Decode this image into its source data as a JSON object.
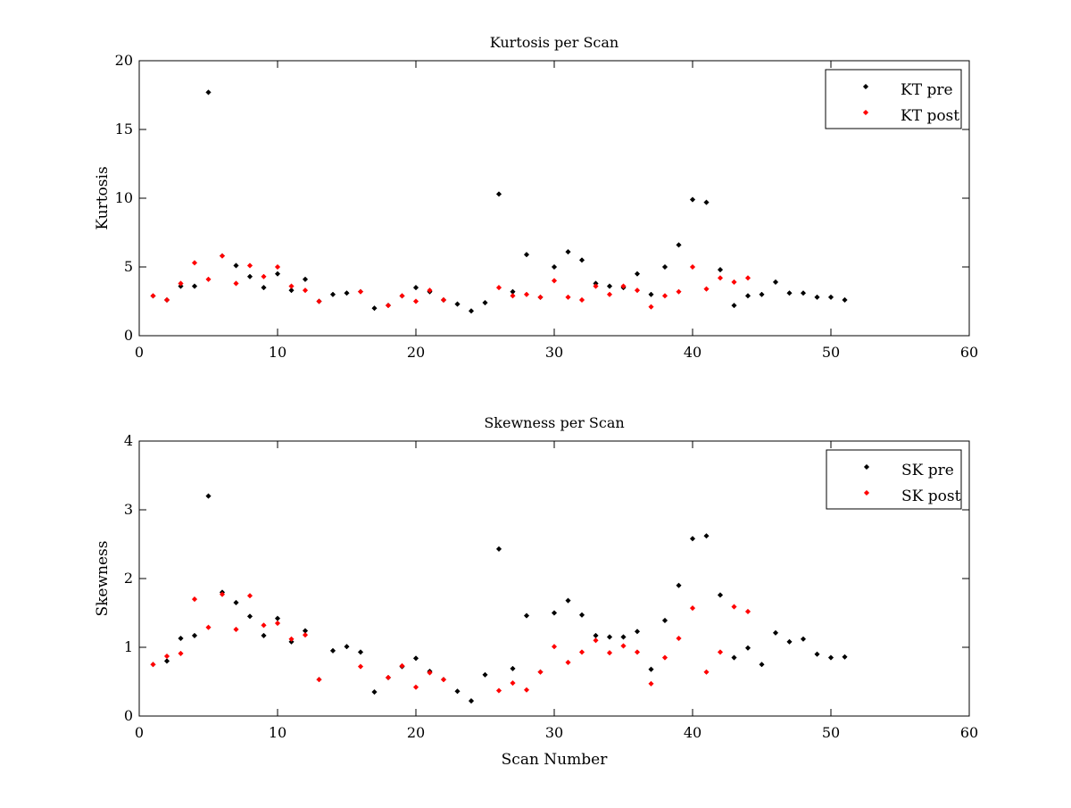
{
  "chart_data": [
    {
      "type": "scatter",
      "title": "Kurtosis per Scan",
      "xlabel": "",
      "ylabel": "Kurtosis",
      "xlim": [
        0,
        60
      ],
      "ylim": [
        0,
        20
      ],
      "xticks": [
        0,
        10,
        20,
        30,
        40,
        50,
        60
      ],
      "yticks": [
        0,
        5,
        10,
        15,
        20
      ],
      "grid": false,
      "legend_position": "top-right",
      "series": [
        {
          "name": "KT pre",
          "color": "#000000",
          "marker": "diamond-dot",
          "x": [
            1,
            2,
            3,
            4,
            5,
            6,
            7,
            8,
            9,
            10,
            11,
            12,
            13,
            14,
            15,
            16,
            17,
            18,
            19,
            20,
            21,
            22,
            23,
            24,
            25,
            26,
            27,
            28,
            29,
            30,
            31,
            32,
            33,
            34,
            35,
            36,
            37,
            38,
            39,
            40,
            41,
            42,
            43,
            44,
            45,
            46,
            47,
            48,
            49,
            50,
            51
          ],
          "y": [
            2.9,
            2.6,
            3.6,
            3.6,
            17.7,
            5.8,
            5.1,
            4.3,
            3.5,
            4.5,
            3.3,
            4.1,
            2.5,
            3.0,
            3.1,
            3.2,
            2.0,
            2.2,
            2.9,
            3.5,
            3.2,
            2.6,
            2.3,
            1.8,
            2.4,
            10.3,
            3.2,
            5.9,
            2.8,
            5.0,
            6.1,
            5.5,
            3.8,
            3.6,
            3.5,
            4.5,
            3.0,
            5.0,
            6.6,
            9.9,
            9.7,
            4.8,
            2.2,
            2.9,
            3.0,
            3.9,
            3.1,
            3.1,
            2.8,
            2.8,
            2.6
          ]
        },
        {
          "name": "KT post",
          "color": "#ff0000",
          "marker": "diamond-dot",
          "x": [
            1,
            2,
            3,
            4,
            5,
            6,
            7,
            8,
            9,
            10,
            11,
            12,
            13,
            16,
            18,
            19,
            20,
            21,
            22,
            26,
            27,
            28,
            29,
            30,
            31,
            32,
            33,
            34,
            35,
            36,
            37,
            38,
            39,
            40,
            41,
            42,
            43,
            44
          ],
          "y": [
            2.9,
            2.6,
            3.8,
            5.3,
            4.1,
            5.8,
            3.8,
            5.1,
            4.3,
            5.0,
            3.6,
            3.3,
            2.5,
            3.2,
            2.2,
            2.9,
            2.5,
            3.3,
            2.6,
            3.5,
            2.9,
            3.0,
            2.8,
            4.0,
            2.8,
            2.6,
            3.6,
            3.0,
            3.6,
            3.3,
            2.1,
            2.9,
            3.2,
            5.0,
            3.4,
            4.2,
            3.9,
            4.2
          ]
        }
      ]
    },
    {
      "type": "scatter",
      "title": "Skewness per Scan",
      "xlabel": "Scan Number",
      "ylabel": "Skewness",
      "xlim": [
        0,
        60
      ],
      "ylim": [
        0,
        4
      ],
      "xticks": [
        0,
        10,
        20,
        30,
        40,
        50,
        60
      ],
      "yticks": [
        0,
        1,
        2,
        3,
        4
      ],
      "grid": false,
      "legend_position": "top-right",
      "series": [
        {
          "name": "SK pre",
          "color": "#000000",
          "marker": "diamond-dot",
          "x": [
            1,
            2,
            3,
            4,
            5,
            6,
            7,
            8,
            9,
            10,
            11,
            12,
            13,
            14,
            15,
            16,
            17,
            18,
            19,
            20,
            21,
            22,
            23,
            24,
            25,
            26,
            27,
            28,
            29,
            30,
            31,
            32,
            33,
            34,
            35,
            36,
            37,
            38,
            39,
            40,
            41,
            42,
            43,
            44,
            45,
            46,
            47,
            48,
            49,
            50,
            51
          ],
          "y": [
            0.75,
            0.8,
            1.13,
            1.17,
            3.2,
            1.8,
            1.65,
            1.45,
            1.17,
            1.42,
            1.08,
            1.24,
            0.53,
            0.95,
            1.01,
            0.93,
            0.35,
            0.56,
            0.72,
            0.84,
            0.65,
            0.53,
            0.36,
            0.22,
            0.6,
            2.43,
            0.69,
            1.46,
            0.64,
            1.5,
            1.68,
            1.47,
            1.17,
            1.15,
            1.15,
            1.23,
            0.68,
            1.39,
            1.9,
            2.58,
            2.62,
            1.76,
            0.85,
            0.99,
            0.75,
            1.21,
            1.08,
            1.12,
            0.9,
            0.85,
            0.86
          ]
        },
        {
          "name": "SK post",
          "color": "#ff0000",
          "marker": "diamond-dot",
          "x": [
            1,
            2,
            3,
            4,
            5,
            6,
            7,
            8,
            9,
            10,
            11,
            12,
            13,
            16,
            18,
            19,
            20,
            21,
            22,
            26,
            27,
            28,
            29,
            30,
            31,
            32,
            33,
            34,
            35,
            36,
            37,
            38,
            39,
            40,
            41,
            42,
            43,
            44
          ],
          "y": [
            0.75,
            0.87,
            0.91,
            1.7,
            1.29,
            1.77,
            1.26,
            1.75,
            1.32,
            1.35,
            1.12,
            1.18,
            0.53,
            0.72,
            0.56,
            0.73,
            0.42,
            0.63,
            0.53,
            0.37,
            0.48,
            0.38,
            0.64,
            1.01,
            0.78,
            0.93,
            1.1,
            0.92,
            1.02,
            0.93,
            0.47,
            0.85,
            1.13,
            1.57,
            0.64,
            0.93,
            1.59,
            1.52
          ]
        }
      ]
    }
  ]
}
